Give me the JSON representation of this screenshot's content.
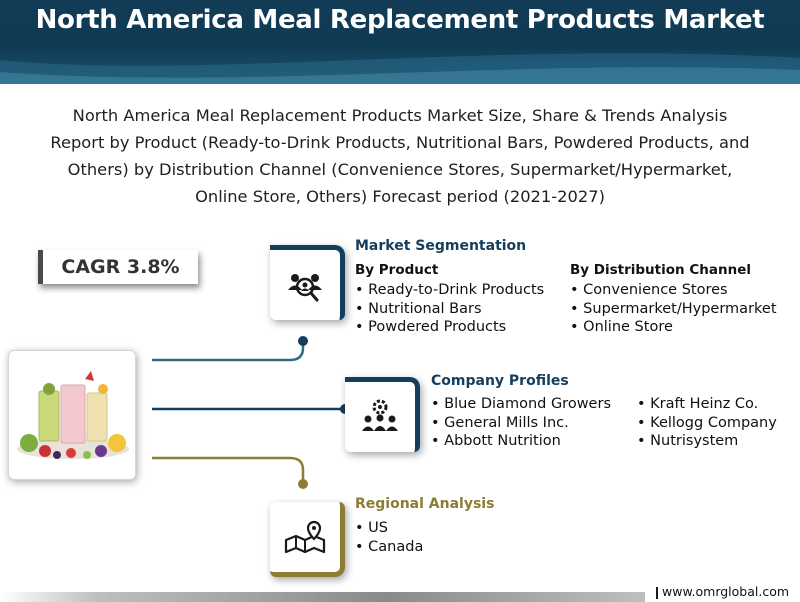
{
  "header": {
    "title": "North America Meal Replacement Products Market"
  },
  "subtitle": {
    "line1": "North America Meal Replacement Products Market Size, Share & Trends Analysis",
    "line2": "Report by Product (Ready-to-Drink Products, Nutritional Bars, Powdered Products, and",
    "line3": "Others) by Distribution Channel (Convenience Stores, Supermarket/Hypermarket,",
    "line4": "Online Store, Others) Forecast period (2021-2027)"
  },
  "cagr": {
    "label": "CAGR 3.8%"
  },
  "segmentation": {
    "title": "Market Segmentation",
    "by_product": {
      "heading": "By Product",
      "items": [
        "Ready-to-Drink Products",
        "Nutritional Bars",
        "Powdered Products"
      ]
    },
    "by_channel": {
      "heading": "By Distribution Channel",
      "items": [
        "Convenience Stores",
        "Supermarket/Hypermarket",
        "Online Store"
      ]
    },
    "icon": "people-search-icon"
  },
  "company_profiles": {
    "title": "Company Profiles",
    "col1": [
      "Blue Diamond Growers",
      "General Mills Inc.",
      "Abbott Nutrition"
    ],
    "col2": [
      "Kraft Heinz Co.",
      "Kellogg Company",
      "Nutrisystem"
    ],
    "icon": "team-gear-icon"
  },
  "regional": {
    "title": "Regional Analysis",
    "items": [
      "US",
      "Canada"
    ],
    "icon": "map-pin-icon"
  },
  "footer": {
    "url": "www.omrglobal.com"
  },
  "colors": {
    "navy": "#153d5c",
    "olive": "#8c7d33",
    "teal_line": "#2e6d80"
  }
}
